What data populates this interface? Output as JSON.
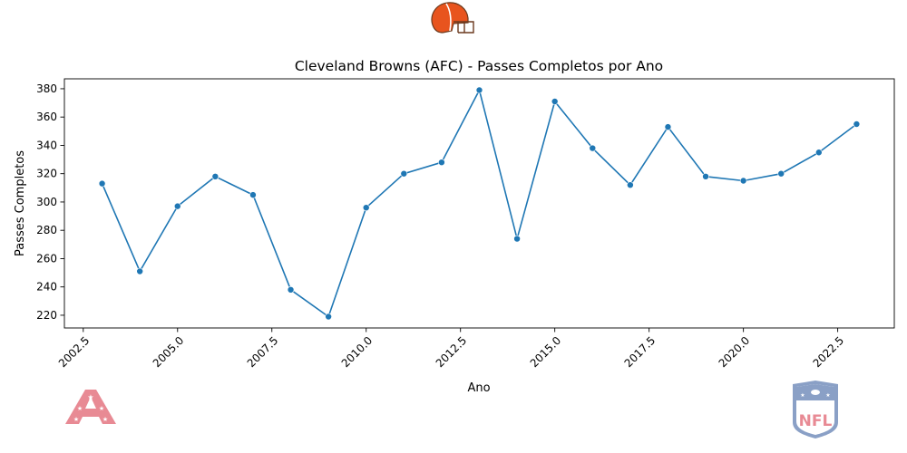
{
  "logos": {
    "team": {
      "name": "browns-helmet-logo",
      "color": "#e8541e"
    },
    "conference": {
      "name": "afc-logo",
      "text": "AFC",
      "color": "#e88a94"
    },
    "league": {
      "name": "nfl-shield-logo",
      "text": "NFL",
      "color": "#e88a94",
      "shield_color": "#8aa0c6"
    }
  },
  "chart_data": {
    "type": "line",
    "title": "Cleveland Browns (AFC) - Passes Completos por Ano",
    "xlabel": "Ano",
    "ylabel": "Passes Completos",
    "xlim": [
      2002.0,
      2024.0
    ],
    "ylim": [
      211,
      387
    ],
    "xticks": [
      2002.5,
      2005.0,
      2007.5,
      2010.0,
      2012.5,
      2015.0,
      2017.5,
      2020.0,
      2022.5
    ],
    "xtick_labels": [
      "2002.5",
      "2005.0",
      "2007.5",
      "2010.0",
      "2012.5",
      "2015.0",
      "2017.5",
      "2020.0",
      "2022.5"
    ],
    "yticks": [
      220,
      240,
      260,
      280,
      300,
      320,
      340,
      360,
      380
    ],
    "ytick_labels": [
      "220",
      "240",
      "260",
      "280",
      "300",
      "320",
      "340",
      "360",
      "380"
    ],
    "grid": false,
    "line_color": "#1f77b4",
    "markers": true,
    "series": [
      {
        "x": [
          2003,
          2004,
          2005,
          2006,
          2007,
          2008,
          2009,
          2010,
          2011,
          2012,
          2013,
          2014,
          2015,
          2016,
          2017,
          2018,
          2019,
          2020,
          2021,
          2022,
          2023
        ],
        "y": [
          313,
          251,
          297,
          318,
          305,
          238,
          219,
          296,
          320,
          328,
          379,
          274,
          371,
          338,
          312,
          353,
          318,
          315,
          320,
          335,
          355
        ]
      }
    ]
  }
}
